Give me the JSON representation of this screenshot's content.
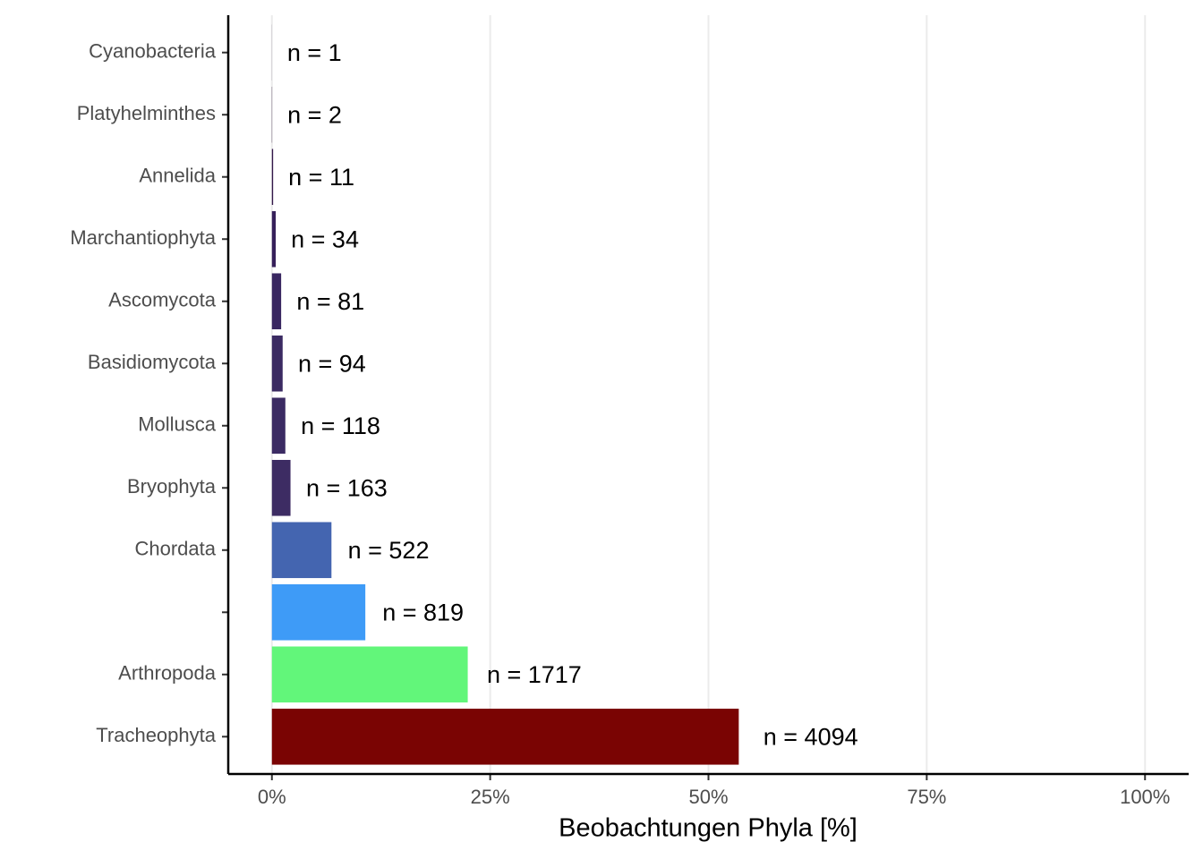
{
  "chart_data": {
    "type": "hbar",
    "xlabel": "Beobachtungen Phyla [%]",
    "categories": [
      "Cyanobacteria",
      "Platyhelminthes",
      "Annelida",
      "Marchantiophyta",
      "Ascomycota",
      "Basidiomycota",
      "Mollusca",
      "Bryophyta",
      "Chordata",
      null,
      "Arthropoda",
      "Tracheophyta"
    ],
    "values": [
      0.01,
      0.03,
      0.14,
      0.44,
      1.06,
      1.23,
      1.54,
      2.13,
      6.82,
      10.7,
      22.43,
      53.47
    ],
    "value_labels": [
      "n = 1",
      "n = 2",
      "n = 11",
      "n = 34",
      "n = 81",
      "n = 94",
      "n = 118",
      "n = 163",
      "n = 522",
      "n = 819",
      "n = 1717",
      "n = 4094"
    ],
    "colors": [
      "#30123b",
      "#30123b",
      "#33184a",
      "#36205a",
      "#382660",
      "#3a2a62",
      "#3b2b63",
      "#3d2c63",
      "#4465b0",
      "#3e9bf7",
      "#62f67a",
      "#7a0403"
    ],
    "xlim": [
      -5,
      105
    ],
    "xticks": [
      {
        "value": 0,
        "label": "0%"
      },
      {
        "value": 25,
        "label": "25%"
      },
      {
        "value": 50,
        "label": "50%"
      },
      {
        "value": 75,
        "label": "75%"
      },
      {
        "value": 100,
        "label": "100%"
      }
    ],
    "grid": true
  }
}
